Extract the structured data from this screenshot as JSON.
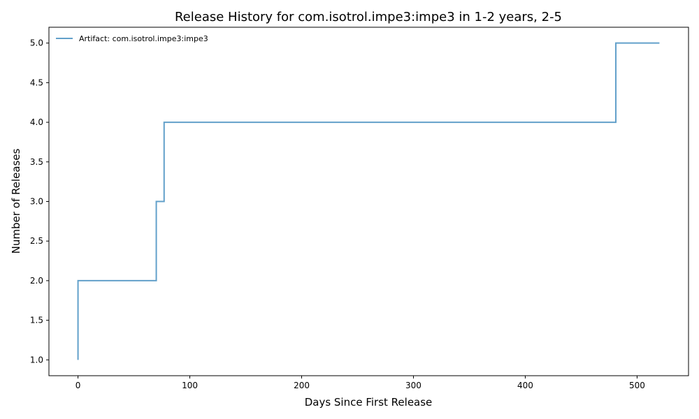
{
  "chart_data": {
    "type": "line",
    "step": "post",
    "title": "Release History for com.isotrol.impe3:impe3 in 1-2 years, 2-5",
    "xlabel": "Days Since First Release",
    "ylabel": "Number of Releases",
    "xlim": [
      -26,
      546
    ],
    "ylim": [
      0.8,
      5.2
    ],
    "xticks": [
      0,
      100,
      200,
      300,
      400,
      500
    ],
    "yticks": [
      1.0,
      1.5,
      2.0,
      2.5,
      3.0,
      3.5,
      4.0,
      4.5,
      5.0
    ],
    "grid": false,
    "legend": {
      "position": "top-left"
    },
    "series": [
      {
        "name": "Artifact: com.isotrol.impe3:impe3",
        "color": "#1f77b4",
        "x": [
          0,
          0,
          70,
          77,
          481,
          520
        ],
        "y": [
          1,
          2,
          3,
          4,
          5,
          5
        ]
      }
    ]
  }
}
